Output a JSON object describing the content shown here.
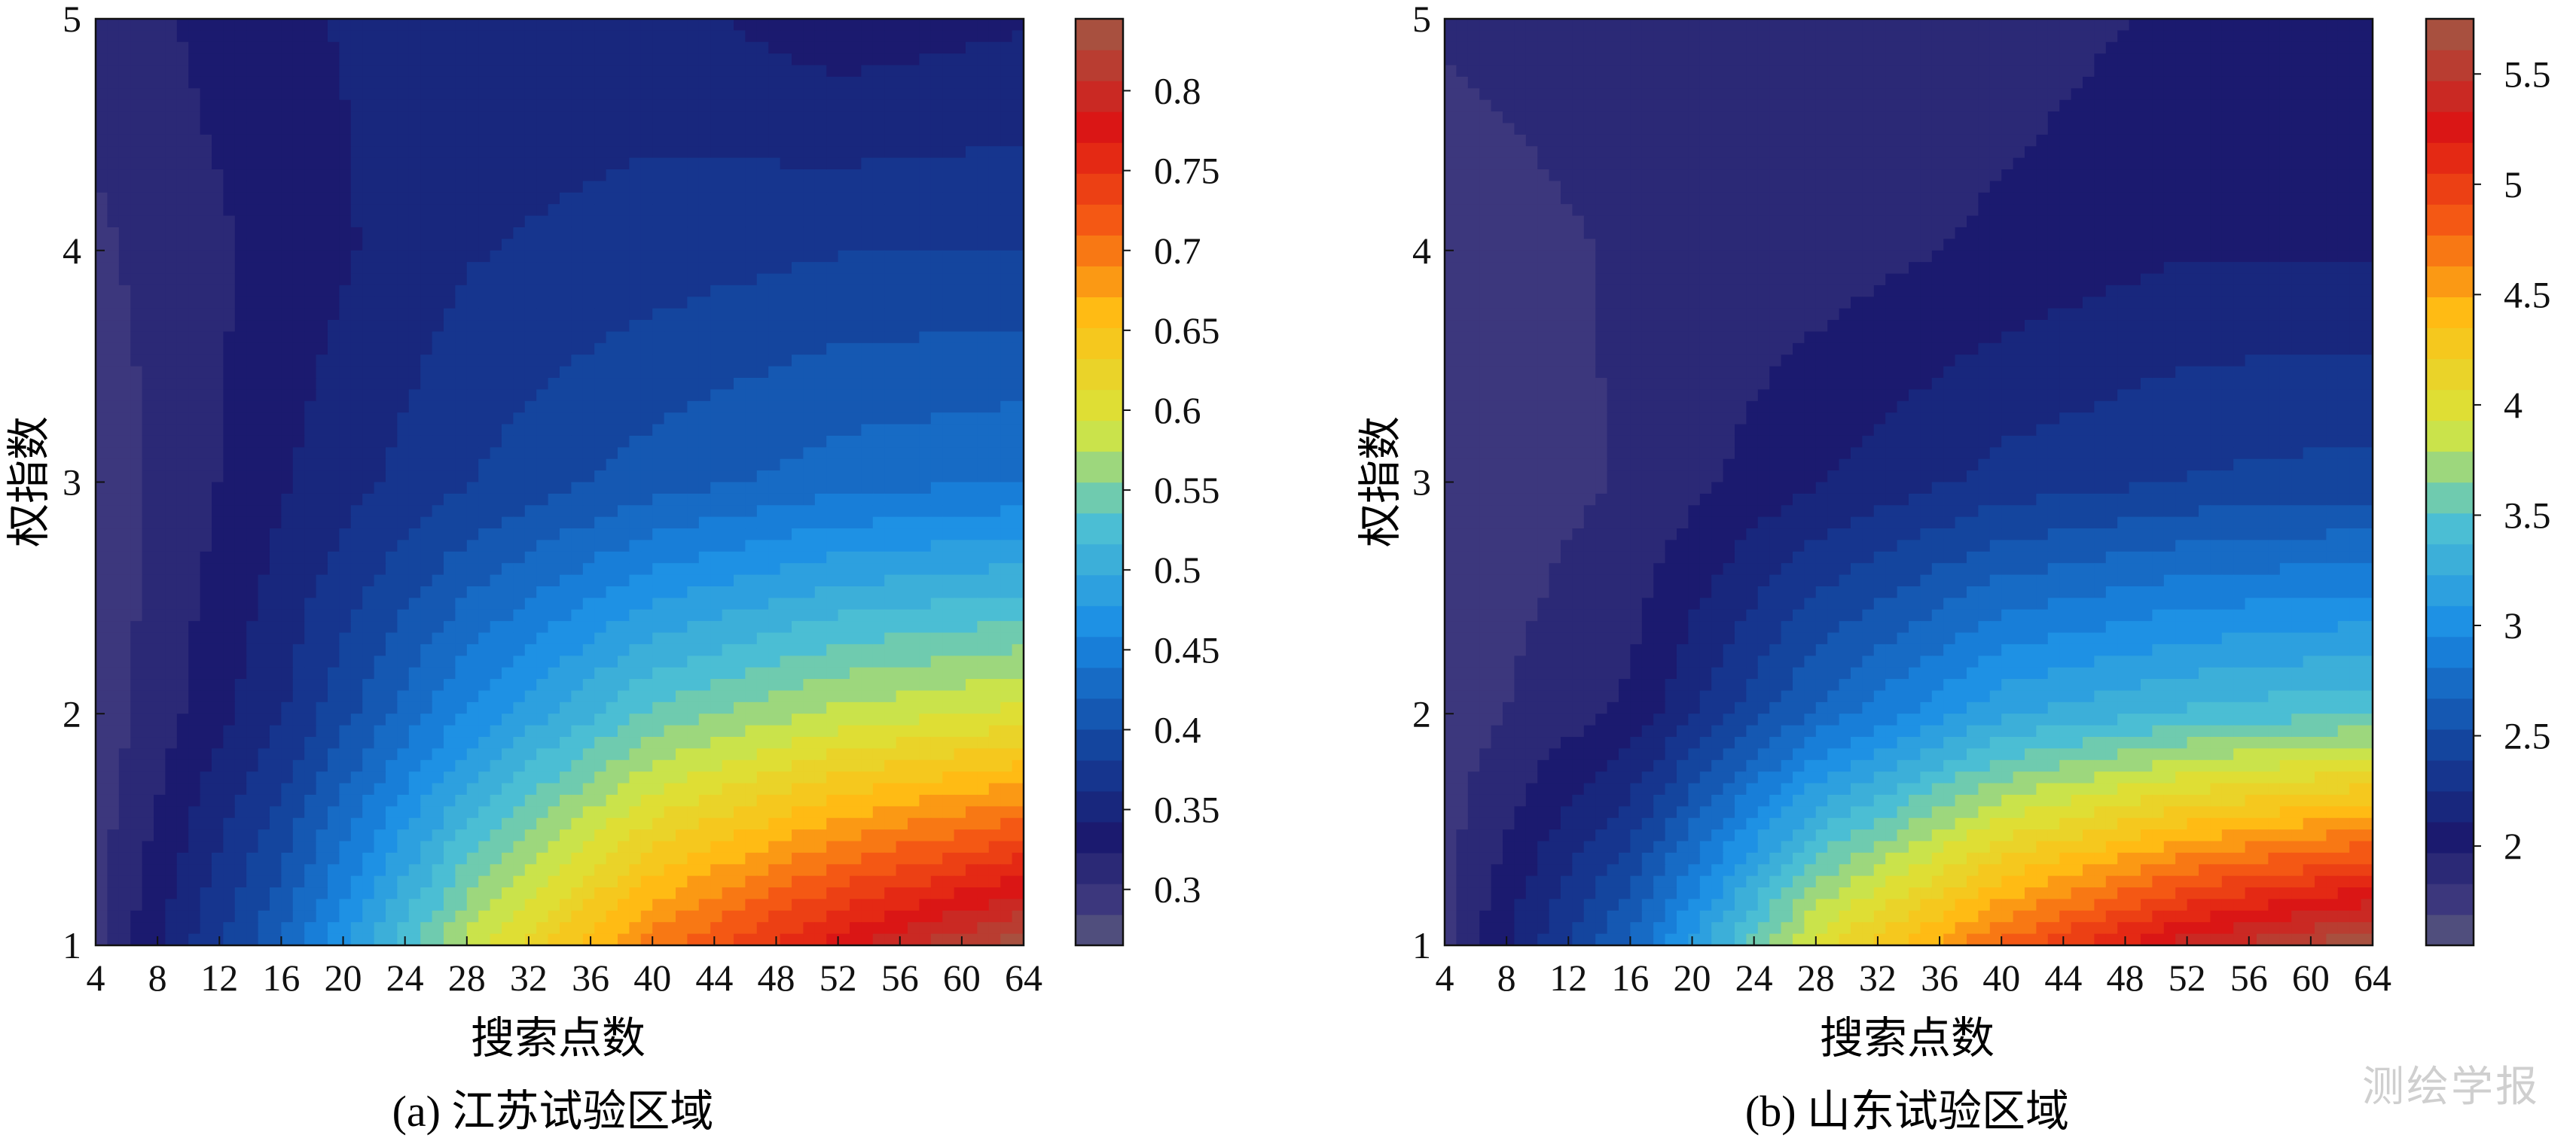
{
  "figure": {
    "watermark": "测绘学报"
  },
  "chart_data": [
    {
      "type": "heatmap",
      "subtitle": "(a) 江苏试验区域",
      "xlabel": "搜索点数",
      "ylabel": "权指数",
      "xlim": [
        4,
        64
      ],
      "ylim": [
        1,
        5
      ],
      "x_ticks": [
        4,
        8,
        12,
        16,
        20,
        24,
        28,
        32,
        36,
        40,
        44,
        48,
        52,
        56,
        60,
        64
      ],
      "x_tick_labels": [
        "4",
        "8",
        "12",
        "16",
        "20",
        "24",
        "28",
        "32",
        "36",
        "40",
        "44",
        "48",
        "52",
        "56",
        "60",
        "64"
      ],
      "y_ticks": [
        1,
        2,
        3,
        4,
        5
      ],
      "y_tick_labels": [
        "1",
        "2",
        "3",
        "4",
        "5"
      ],
      "colorbar": {
        "min": 0.265,
        "max": 0.845,
        "ticks": [
          0.3,
          0.35,
          0.4,
          0.45,
          0.5,
          0.55,
          0.6,
          0.65,
          0.7,
          0.75,
          0.8
        ],
        "tick_labels": [
          "0.3",
          "0.35",
          "0.4",
          "0.45",
          "0.5",
          "0.55",
          "0.6",
          "0.65",
          "0.7",
          "0.75",
          "0.8"
        ]
      },
      "values": {
        "y": [
          1,
          2,
          3,
          4,
          5
        ],
        "x": [
          4,
          16,
          28,
          40,
          52,
          64
        ],
        "z": [
          [
            0.3,
            0.42,
            0.58,
            0.7,
            0.78,
            0.84
          ],
          [
            0.29,
            0.36,
            0.46,
            0.54,
            0.58,
            0.6
          ],
          [
            0.29,
            0.34,
            0.38,
            0.41,
            0.43,
            0.44
          ],
          [
            0.3,
            0.33,
            0.36,
            0.37,
            0.38,
            0.38
          ],
          [
            0.31,
            0.34,
            0.35,
            0.35,
            0.33,
            0.34
          ]
        ]
      },
      "grid": false,
      "colormap": "jet-muted",
      "contour_lines": true
    },
    {
      "type": "heatmap",
      "subtitle": "(b) 山东试验区域",
      "xlabel": "搜索点数",
      "ylabel": "权指数",
      "xlim": [
        4,
        64
      ],
      "ylim": [
        1,
        5
      ],
      "x_ticks": [
        4,
        8,
        12,
        16,
        20,
        24,
        28,
        32,
        36,
        40,
        44,
        48,
        52,
        56,
        60,
        64
      ],
      "x_tick_labels": [
        "4",
        "8",
        "12",
        "16",
        "20",
        "24",
        "28",
        "32",
        "36",
        "40",
        "44",
        "48",
        "52",
        "56",
        "60",
        "64"
      ],
      "y_ticks": [
        1,
        2,
        3,
        4,
        5
      ],
      "y_tick_labels": [
        "1",
        "2",
        "3",
        "4",
        "5"
      ],
      "colorbar": {
        "min": 1.55,
        "max": 5.75,
        "ticks": [
          2,
          2.5,
          3,
          3.5,
          4,
          4.5,
          5,
          5.5
        ],
        "tick_labels": [
          "2",
          "2.5",
          "3",
          "3.5",
          "4",
          "4.5",
          "5",
          "5.5"
        ]
      },
      "values": {
        "y": [
          1,
          2,
          3,
          4,
          5
        ],
        "x": [
          4,
          16,
          28,
          40,
          52,
          64
        ],
        "z": [
          [
            1.8,
            2.7,
            4.0,
            4.8,
            5.4,
            5.75
          ],
          [
            1.75,
            2.0,
            2.7,
            3.2,
            3.4,
            3.5
          ],
          [
            1.7,
            1.85,
            2.1,
            2.3,
            2.4,
            2.45
          ],
          [
            1.75,
            1.85,
            1.9,
            2.0,
            2.1,
            2.1
          ],
          [
            1.85,
            1.9,
            1.9,
            1.9,
            2.0,
            2.0
          ]
        ]
      },
      "grid": false,
      "colormap": "jet-muted",
      "contour_lines": true
    }
  ]
}
